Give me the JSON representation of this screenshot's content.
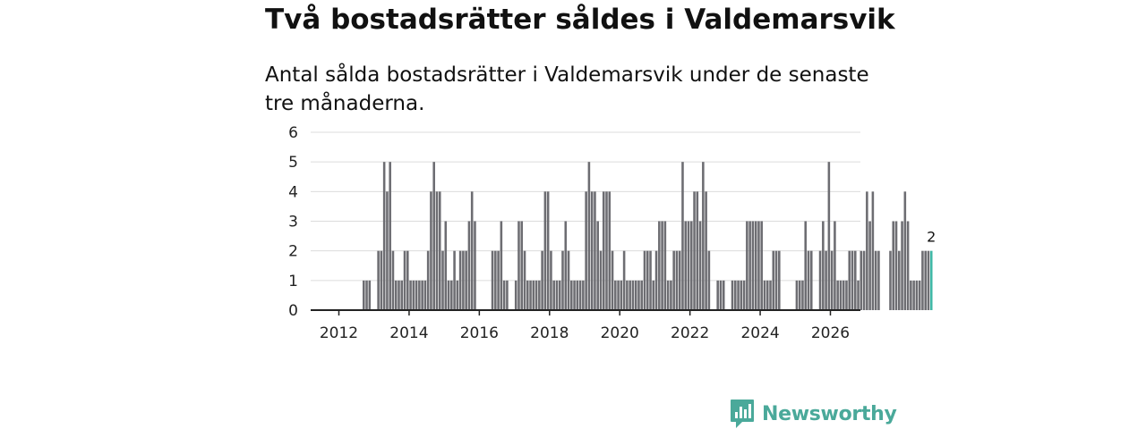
{
  "header": {
    "title": "Två bostadsrätter såldes i Valdemarsvik",
    "subtitle": "Antal sålda bostadsrätter i Valdemarsvik under de senaste tre månaderna."
  },
  "brand": {
    "name": "Newsworthy",
    "color": "#4aa99a"
  },
  "chart_data": {
    "type": "bar",
    "title": "Två bostadsrätter såldes i Valdemarsvik",
    "subtitle": "Antal sålda bostadsrätter i Valdemarsvik under de senaste tre månaderna.",
    "xlabel": "",
    "ylabel": "",
    "interval": "rolling 3-month total, monthly",
    "start": "2012-01",
    "end": "2026-02",
    "ylim": [
      0,
      6
    ],
    "yticks": [
      "0",
      "1",
      "2",
      "3",
      "4",
      "5",
      "6"
    ],
    "xticks": [
      "2012",
      "2014",
      "2016",
      "2018",
      "2020",
      "2022",
      "2024",
      "2026"
    ],
    "grid": true,
    "bar_color": "#6d6d72",
    "highlight_color": "#3fb8a6",
    "highlight_label": "2",
    "values": [
      0,
      0,
      0,
      0,
      0,
      0,
      0,
      0,
      1,
      1,
      1,
      0,
      0,
      2,
      2,
      5,
      4,
      5,
      2,
      1,
      1,
      1,
      2,
      2,
      1,
      1,
      1,
      1,
      1,
      1,
      2,
      4,
      5,
      4,
      4,
      2,
      3,
      1,
      1,
      2,
      1,
      2,
      2,
      2,
      3,
      4,
      3,
      0,
      0,
      0,
      0,
      0,
      2,
      2,
      2,
      3,
      1,
      1,
      0,
      0,
      1,
      3,
      3,
      2,
      1,
      1,
      1,
      1,
      1,
      2,
      4,
      4,
      2,
      1,
      1,
      1,
      2,
      3,
      2,
      1,
      1,
      1,
      1,
      1,
      4,
      5,
      4,
      4,
      3,
      2,
      4,
      4,
      4,
      2,
      1,
      1,
      1,
      2,
      1,
      1,
      1,
      1,
      1,
      1,
      2,
      2,
      2,
      1,
      2,
      3,
      3,
      3,
      1,
      1,
      2,
      2,
      2,
      5,
      3,
      3,
      3,
      4,
      4,
      3,
      5,
      4,
      2,
      0,
      0,
      1,
      1,
      1,
      0,
      0,
      1,
      1,
      1,
      1,
      1,
      3,
      3,
      3,
      3,
      3,
      3,
      1,
      1,
      1,
      2,
      2,
      2,
      0,
      0,
      0,
      0,
      0,
      1,
      1,
      1,
      3,
      2,
      2,
      0,
      0,
      2,
      3,
      2,
      5,
      2,
      3,
      1,
      1,
      1,
      1,
      2,
      2,
      2,
      1,
      2,
      2,
      4,
      3,
      4,
      2,
      2,
      0,
      0,
      0,
      2,
      3,
      3,
      2,
      3,
      4,
      3,
      1,
      1,
      1,
      1,
      2,
      2,
      2,
      2
    ]
  }
}
